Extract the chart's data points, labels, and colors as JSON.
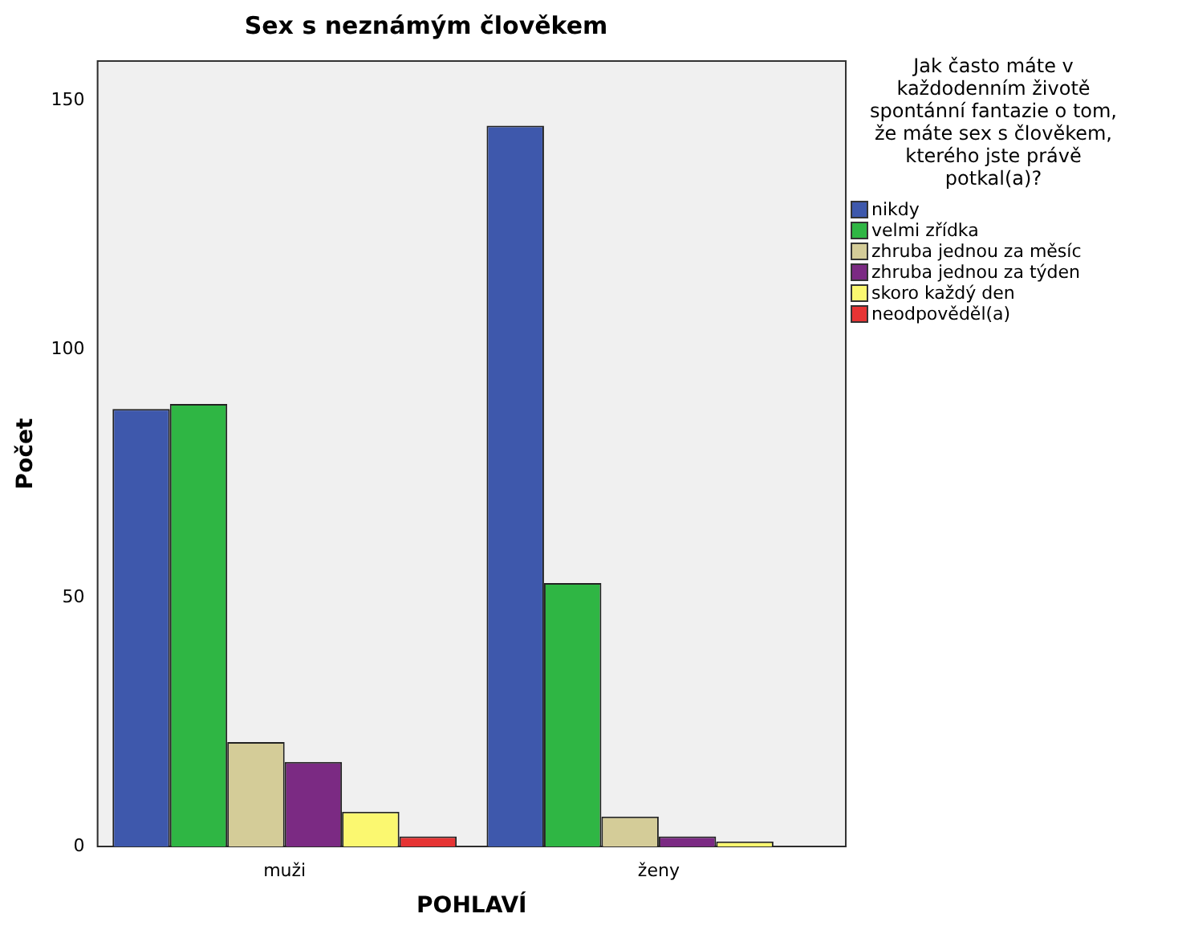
{
  "chart_data": {
    "type": "bar",
    "title": "Sex s neznámým člověkem",
    "xlabel": "POHLAVÍ",
    "ylabel": "Počet",
    "legend_title": "Jak často máte v každodenním životě spontánní fantazie o tom, že máte sex s člověkem, kterého jste právě potkal(a)?",
    "categories": [
      "muži",
      "ženy"
    ],
    "series": [
      {
        "name": "nikdy",
        "color": "#3e58ac",
        "values": [
          88,
          145
        ]
      },
      {
        "name": "velmi zřídka",
        "color": "#2fb644",
        "values": [
          89,
          53
        ]
      },
      {
        "name": "zhruba jednou za měsíc",
        "color": "#d4cc98",
        "values": [
          21,
          6
        ]
      },
      {
        "name": "zhruba jednou za týden",
        "color": "#7b2a83",
        "values": [
          17,
          2
        ]
      },
      {
        "name": "skoro každý den",
        "color": "#fbf870",
        "values": [
          7,
          1
        ]
      },
      {
        "name": "neodpověděl(a)",
        "color": "#e63434",
        "values": [
          2,
          null
        ]
      }
    ],
    "ylim": [
      0,
      158
    ],
    "yticks": [
      0,
      50,
      100,
      150
    ],
    "grid": false,
    "legend": "right"
  }
}
